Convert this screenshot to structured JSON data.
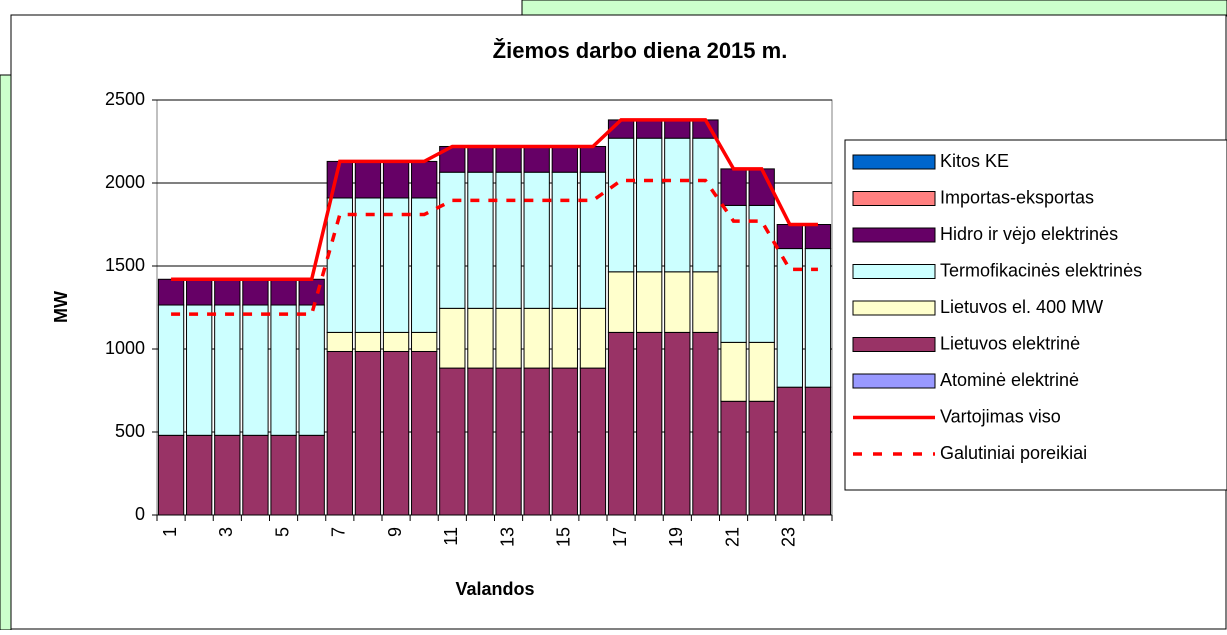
{
  "chart_data": {
    "type": "bar",
    "stacked": true,
    "title": "Žiemos darbo diena 2015 m.",
    "x_label": "Valandos",
    "y_label": "MW",
    "categories": [
      "1",
      null,
      "3",
      null,
      "5",
      null,
      "7",
      null,
      "9",
      null,
      "11",
      null,
      "13",
      null,
      "15",
      null,
      "17",
      null,
      "19",
      null,
      "21",
      null,
      "23",
      null
    ],
    "ylim": [
      0,
      2500
    ],
    "yticks": [
      0,
      500,
      1000,
      1500,
      2000,
      2500
    ],
    "grid": true,
    "legend": "right",
    "series": [
      {
        "name": "Kitos KE",
        "color": "#0066cc",
        "kind": "bar",
        "values": [
          0,
          0,
          0,
          0,
          0,
          0,
          0,
          0,
          0,
          0,
          0,
          0,
          0,
          0,
          0,
          0,
          0,
          0,
          0,
          0,
          0,
          0,
          0,
          0
        ]
      },
      {
        "name": "Importas-eksportas",
        "color": "#ff8080",
        "kind": "bar",
        "values": [
          0,
          0,
          0,
          0,
          0,
          0,
          0,
          0,
          0,
          0,
          0,
          0,
          0,
          0,
          0,
          0,
          0,
          0,
          0,
          0,
          0,
          0,
          0,
          0
        ]
      },
      {
        "name": "Hidro ir vėjo elektrinės",
        "color": "#660066",
        "kind": "bar",
        "values": [
          155,
          155,
          155,
          155,
          155,
          155,
          220,
          220,
          220,
          220,
          155,
          155,
          155,
          155,
          155,
          155,
          110,
          110,
          110,
          110,
          220,
          220,
          145,
          145
        ]
      },
      {
        "name": "Termofikacinės elektrinės",
        "color": "#ccffff",
        "kind": "bar",
        "values": [
          785,
          785,
          785,
          785,
          785,
          785,
          810,
          810,
          810,
          810,
          820,
          820,
          820,
          820,
          820,
          820,
          805,
          805,
          805,
          805,
          825,
          825,
          835,
          835
        ]
      },
      {
        "name": "Lietuvos el. 400 MW",
        "color": "#ffffcc",
        "kind": "bar",
        "values": [
          0,
          0,
          0,
          0,
          0,
          0,
          115,
          115,
          115,
          115,
          360,
          360,
          360,
          360,
          360,
          360,
          365,
          365,
          365,
          365,
          355,
          355,
          0,
          0
        ]
      },
      {
        "name": "Lietuvos elektrinė",
        "color": "#993366",
        "kind": "bar",
        "values": [
          480,
          480,
          480,
          480,
          480,
          480,
          985,
          985,
          985,
          985,
          885,
          885,
          885,
          885,
          885,
          885,
          1100,
          1100,
          1100,
          1100,
          685,
          685,
          770,
          770
        ]
      },
      {
        "name": "Atominė elektrinė",
        "color": "#9999ff",
        "kind": "bar",
        "values": [
          0,
          0,
          0,
          0,
          0,
          0,
          0,
          0,
          0,
          0,
          0,
          0,
          0,
          0,
          0,
          0,
          0,
          0,
          0,
          0,
          0,
          0,
          0,
          0
        ]
      },
      {
        "name": "Vartojimas viso",
        "color": "#ff0000",
        "kind": "line",
        "style": "solid",
        "values": [
          1420,
          1420,
          1420,
          1420,
          1420,
          1420,
          2130,
          2130,
          2130,
          2130,
          2220,
          2220,
          2220,
          2220,
          2220,
          2220,
          2380,
          2380,
          2380,
          2380,
          2085,
          2085,
          1750,
          1750
        ]
      },
      {
        "name": "Galutiniai poreikiai",
        "color": "#ff0000",
        "kind": "line",
        "style": "dashed",
        "values": [
          1210,
          1210,
          1210,
          1210,
          1210,
          1210,
          1810,
          1810,
          1810,
          1810,
          1895,
          1895,
          1895,
          1895,
          1895,
          1895,
          2015,
          2015,
          2015,
          2015,
          1770,
          1770,
          1480,
          1480
        ]
      }
    ]
  }
}
